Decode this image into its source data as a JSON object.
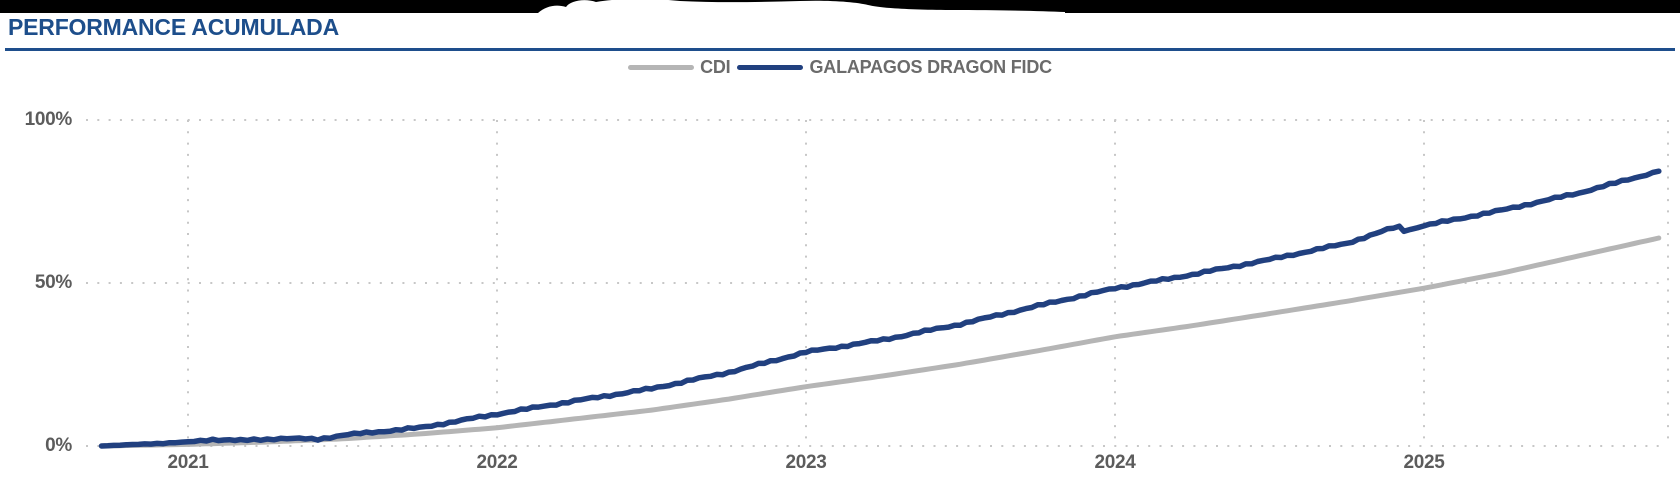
{
  "header": {
    "title": "PERFORMANCE ACUMULADA",
    "title_color": "#1d4e8b",
    "rule_color": "#1e4e8c"
  },
  "legend": {
    "items": [
      {
        "label": "CDI",
        "color": "#b5b5b5"
      },
      {
        "label": "GALAPAGOS DRAGON FIDC",
        "color": "#21407f"
      }
    ],
    "text_color": "#6b6b6b"
  },
  "chart_data": {
    "type": "line",
    "title": "PERFORMANCE ACUMULADA",
    "xlabel": "",
    "ylabel": "",
    "x_ticks": [
      "2021",
      "2022",
      "2023",
      "2024",
      "2025"
    ],
    "x_tick_years": [
      2021,
      2022,
      2023,
      2024,
      2025
    ],
    "y_ticks": [
      "100%",
      "50%",
      "0%"
    ],
    "y_tick_values": [
      100,
      50,
      0
    ],
    "ylim": [
      0,
      100
    ],
    "x_range_years": [
      2020.72,
      2025.76
    ],
    "grid": "dotted",
    "grid_color": "#c7c7c7",
    "legend_position": "top-center",
    "series": [
      {
        "name": "CDI",
        "color": "#b5b5b5",
        "width": 5,
        "jitter": 0,
        "x": [
          2020.72,
          2021.0,
          2021.25,
          2021.5,
          2021.75,
          2022.0,
          2022.25,
          2022.5,
          2022.75,
          2023.0,
          2023.25,
          2023.5,
          2023.75,
          2024.0,
          2024.25,
          2024.5,
          2024.75,
          2025.0,
          2025.25,
          2025.5,
          2025.76
        ],
        "values": [
          0,
          0.5,
          1.2,
          2.2,
          3.7,
          5.6,
          8.3,
          11.0,
          14.4,
          18.2,
          21.5,
          25.1,
          29.2,
          33.5,
          36.9,
          40.6,
          44.4,
          48.4,
          53.0,
          58.3,
          63.8
        ]
      },
      {
        "name": "GALAPAGOS DRAGON FIDC",
        "color": "#21407f",
        "width": 5.5,
        "jitter": 1,
        "x": [
          2020.72,
          2021.0,
          2021.08,
          2021.17,
          2021.3,
          2021.42,
          2021.5,
          2021.75,
          2022.0,
          2022.25,
          2022.5,
          2022.75,
          2023.0,
          2023.25,
          2023.5,
          2023.75,
          2024.0,
          2024.25,
          2024.5,
          2024.75,
          2024.9,
          2024.92,
          2024.935,
          2025.0,
          2025.25,
          2025.5,
          2025.76
        ],
        "values": [
          0,
          1.2,
          2.0,
          1.7,
          2.3,
          2.1,
          3.3,
          5.6,
          9.8,
          13.8,
          17.6,
          22.6,
          28.8,
          32.6,
          37.4,
          43.0,
          48.4,
          52.6,
          57.2,
          62.2,
          66.9,
          67.2,
          66.0,
          67.6,
          72.3,
          77.6,
          84.3
        ]
      }
    ]
  }
}
